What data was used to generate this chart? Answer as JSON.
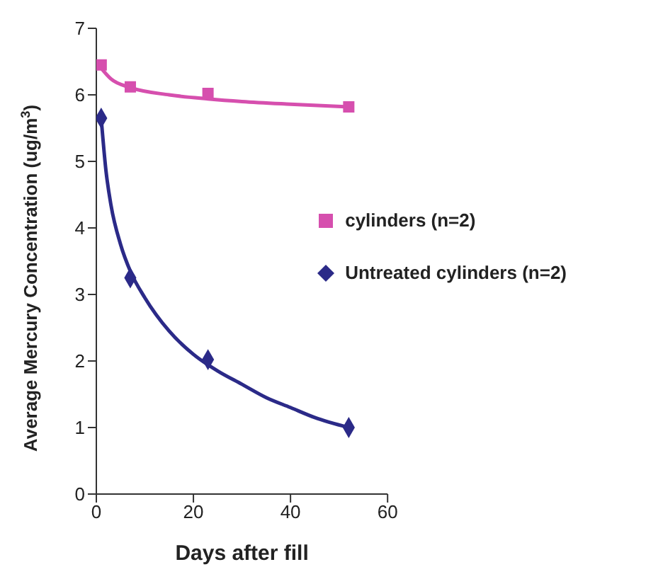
{
  "chart_data": {
    "type": "scatter",
    "xlabel": "Days after fill",
    "ylabel": "Average Mercury Concentration (ug/m$^{3}$)",
    "xlim": [
      0,
      60
    ],
    "xticks": [
      0,
      20,
      40,
      60
    ],
    "ylim": [
      0,
      7
    ],
    "yticks": [
      0,
      1,
      2,
      3,
      4,
      5,
      6,
      7
    ],
    "legend": "right",
    "series": [
      {
        "name": "cylinders (n=2)",
        "marker": "square",
        "color": "#d64fae",
        "x": [
          1,
          7,
          23,
          52
        ],
        "values": [
          6.45,
          6.12,
          6.02,
          5.82
        ]
      },
      {
        "name": "Untreated cylinders (n=2)",
        "marker": "diamond",
        "color": "#2b2a88",
        "x": [
          1,
          7,
          23,
          52
        ],
        "values": [
          5.65,
          3.25,
          2.02,
          1.0
        ]
      },
      {
        "type": "line",
        "marker": "none",
        "color": "#d64fae",
        "x": [
          1,
          3,
          7,
          15,
          23,
          30,
          40,
          52
        ],
        "values": [
          6.4,
          6.24,
          6.11,
          6.0,
          5.94,
          5.9,
          5.86,
          5.82
        ]
      },
      {
        "type": "line",
        "marker": "none",
        "color": "#2b2a88",
        "x": [
          1,
          2,
          3,
          5,
          7,
          10,
          15,
          20,
          25,
          30,
          35,
          40,
          45,
          52
        ],
        "values": [
          5.65,
          4.85,
          4.35,
          3.75,
          3.35,
          2.95,
          2.45,
          2.1,
          1.85,
          1.65,
          1.45,
          1.3,
          1.15,
          1.0
        ]
      }
    ]
  }
}
